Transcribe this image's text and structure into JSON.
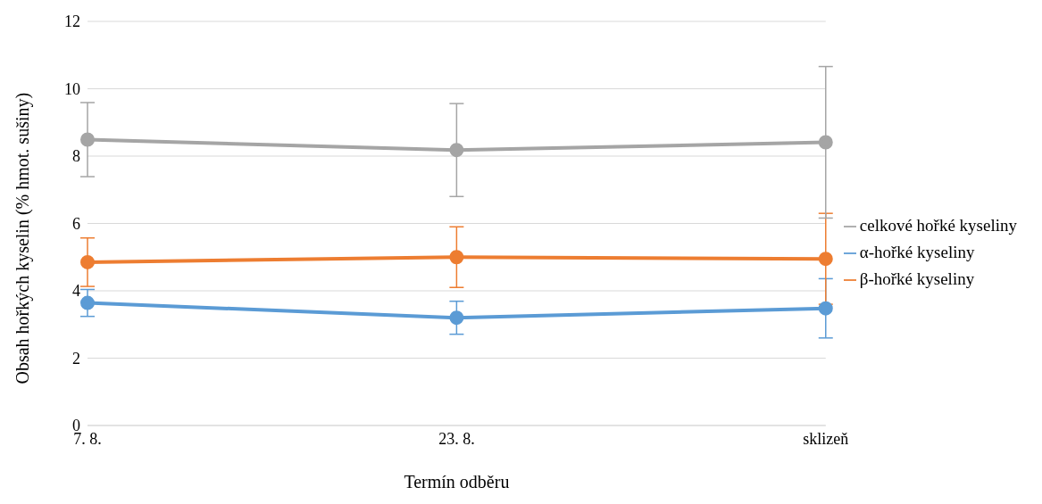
{
  "chart_data": {
    "type": "line",
    "xlabel": "Termín odběru",
    "ylabel": "Obsah hořkých kyselin (% hmot. sušiny)",
    "categories": [
      "7. 8.",
      "23. 8.",
      "sklizeň"
    ],
    "series": [
      {
        "name": "α-hořké kyseliny",
        "color": "#5b9bd5",
        "values": [
          3.64,
          3.2,
          3.48
        ],
        "errors": [
          0.4,
          0.49,
          0.88
        ]
      },
      {
        "name": "β-hořké kyseliny",
        "color": "#ed7d31",
        "values": [
          4.85,
          5.0,
          4.95
        ],
        "errors": [
          0.72,
          0.9,
          1.35
        ]
      },
      {
        "name": "celkové hořké kyseliny",
        "color": "#a5a5a5",
        "values": [
          8.49,
          8.18,
          8.41
        ],
        "errors": [
          1.1,
          1.38,
          2.25
        ]
      }
    ],
    "ylim": [
      0,
      12
    ],
    "yticks": [
      0,
      2,
      4,
      6,
      8,
      10,
      12
    ],
    "grid": "y",
    "legend": "right",
    "marker": "circle",
    "line_style": "solid"
  }
}
